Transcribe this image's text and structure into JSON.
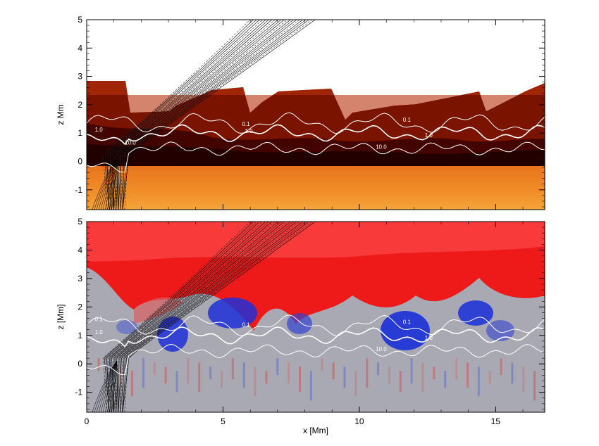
{
  "chart_data": [
    {
      "type": "heatmap",
      "panel": "top",
      "xlabel": "",
      "ylabel": "z Mm",
      "xlim": [
        0,
        16.8
      ],
      "ylim": [
        -1.7,
        5.0
      ],
      "xticks": [
        0,
        5,
        10,
        15
      ],
      "yticks": [
        -1,
        0,
        1,
        2,
        3,
        4,
        5
      ],
      "ytick_labels": [
        "-1",
        "0",
        "1",
        "2",
        "3",
        "4",
        "5"
      ],
      "colormap": [
        "#ffffff",
        "#2a0000",
        "#7a1300",
        "#c45a16",
        "#f0a040"
      ],
      "contour_levels": [
        "0.1",
        "1.0",
        "10.0"
      ],
      "contour_labels_top": [
        {
          "text": "1.0",
          "x": 0.3,
          "y": 1.05
        },
        {
          "text": "0.1",
          "x": 5.7,
          "y": 1.25
        },
        {
          "text": "1.0",
          "x": 5.8,
          "y": 1.0
        },
        {
          "text": "10.0",
          "x": 1.4,
          "y": 0.6
        },
        {
          "text": "0.1",
          "x": 11.6,
          "y": 1.4
        },
        {
          "text": "1.0",
          "x": 12.4,
          "y": 0.85
        },
        {
          "text": "10.0",
          "x": 10.6,
          "y": 0.45
        }
      ],
      "field_bundle": "black field lines rising diagonally from x≈1 at z≈0 to x≈8 at z=5"
    },
    {
      "type": "heatmap",
      "panel": "bottom",
      "xlabel": "x [Mm]",
      "ylabel": "z [Mm]",
      "xlim": [
        0,
        16.8
      ],
      "ylim": [
        -1.7,
        5.0
      ],
      "xticks": [
        0,
        5,
        10,
        15
      ],
      "xtick_labels": [
        "0",
        "5",
        "10",
        "15"
      ],
      "yticks": [
        -1,
        0,
        1,
        2,
        3,
        4,
        5
      ],
      "ytick_labels": [
        "-1",
        "0",
        "1",
        "2",
        "3",
        "4",
        "5"
      ],
      "colormap": [
        "#1a2fd8",
        "#a9a9b4",
        "#ee1111"
      ],
      "contour_levels": [
        "0.1",
        "1.0",
        "10.0"
      ],
      "contour_labels_bottom": [
        {
          "text": "0.1",
          "x": 0.3,
          "y": 1.5
        },
        {
          "text": "1.0",
          "x": 0.3,
          "y": 1.05
        },
        {
          "text": "0.1",
          "x": 5.7,
          "y": 1.3
        },
        {
          "text": "1.0",
          "x": 12.4,
          "y": 0.85
        },
        {
          "text": "10.0",
          "x": 10.6,
          "y": 0.45
        },
        {
          "text": "0.1",
          "x": 11.6,
          "y": 1.4
        }
      ]
    }
  ]
}
